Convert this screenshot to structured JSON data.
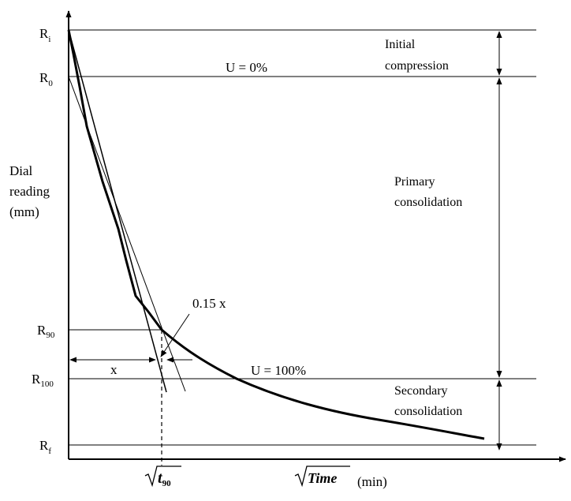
{
  "diagram": {
    "type": "consolidation-curve (square-root-of-time method)",
    "y_axis": {
      "line1": "Dial",
      "line2": "reading",
      "line3": "(mm)"
    },
    "x_axis": {
      "label": "Time",
      "unit": "(min)",
      "t_label": "t",
      "t_sub": "90"
    },
    "levels": {
      "r_i": {
        "base": "R",
        "sub": "i"
      },
      "r_0": {
        "base": "R",
        "sub": "0"
      },
      "r_90": {
        "base": "R",
        "sub": "90"
      },
      "r_100": {
        "base": "R",
        "sub": "100"
      },
      "r_f": {
        "base": "R",
        "sub": "f"
      }
    },
    "annotations": {
      "u0": "U = 0%",
      "u100": "U = 100%",
      "fifteen_x": "0.15 x",
      "x": "x"
    },
    "zones": {
      "initial_1": "Initial",
      "initial_2": "compression",
      "primary_1": "Primary",
      "primary_2": "consolidation",
      "secondary_1": "Secondary",
      "secondary_2": "consolidation"
    }
  }
}
